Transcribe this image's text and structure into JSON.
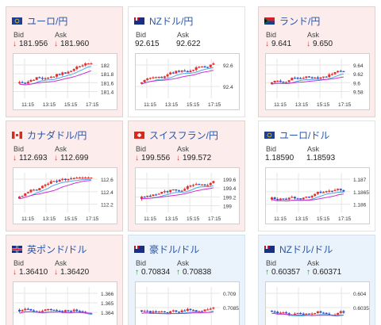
{
  "panels": [
    {
      "title": "ユーロ/円",
      "flag": "eu-jp",
      "bg": "pink",
      "bid_label": "Bid",
      "ask_label": "Ask",
      "bid": "181.956",
      "ask": "181.960",
      "dir": "down",
      "yticks": [
        "182",
        "181.8",
        "181.6",
        "181.4"
      ],
      "xticks": [
        "11:15",
        "13:15",
        "15:15",
        "17:15"
      ]
    },
    {
      "title": "NZドル/円",
      "flag": "nz-jp",
      "bg": "white",
      "bid_label": "Bid",
      "ask_label": "Ask",
      "bid": "92.615",
      "ask": "92.622",
      "dir": "none",
      "yticks": [
        "92.6",
        "92.4"
      ],
      "xticks": [
        "11:15",
        "13:15",
        "15:15",
        "17:15"
      ]
    },
    {
      "title": "ランド/円",
      "flag": "za-jp",
      "bg": "pink",
      "bid_label": "Bid",
      "ask_label": "Ask",
      "bid": "9.641",
      "ask": "9.650",
      "dir": "down",
      "yticks": [
        "9.64",
        "9.62",
        "9.6",
        "9.58"
      ],
      "xticks": [
        "11:15",
        "13:15",
        "15:15",
        "17:15"
      ]
    },
    {
      "title": "カナダドル/円",
      "flag": "ca-jp",
      "bg": "pink",
      "bid_label": "Bid",
      "ask_label": "Ask",
      "bid": "112.693",
      "ask": "112.699",
      "dir": "down",
      "yticks": [
        "112.6",
        "112.4",
        "112.2"
      ],
      "xticks": [
        "11:15",
        "13:15",
        "15:15",
        "17:15"
      ]
    },
    {
      "title": "スイスフラン/円",
      "flag": "ch-jp",
      "bg": "pink",
      "bid_label": "Bid",
      "ask_label": "Ask",
      "bid": "199.556",
      "ask": "199.572",
      "dir": "down",
      "yticks": [
        "199.6",
        "199.4",
        "199.2",
        "199"
      ],
      "xticks": [
        "11:15",
        "13:15",
        "15:15",
        "17:15"
      ]
    },
    {
      "title": "ユーロ/ドル",
      "flag": "eu-us",
      "bg": "white",
      "bid_label": "Bid",
      "ask_label": "Ask",
      "bid": "1.18590",
      "ask": "1.18593",
      "dir": "none",
      "yticks": [
        "1.187",
        "1.1865",
        "1.186"
      ],
      "xticks": [
        "11:15",
        "13:15",
        "15:15",
        "17:15"
      ]
    },
    {
      "title": "英ポンド/ドル",
      "flag": "gb-us",
      "bg": "pink",
      "bid_label": "Bid",
      "ask_label": "Ask",
      "bid": "1.36410",
      "ask": "1.36420",
      "dir": "down",
      "yticks": [
        "1.366",
        "1.365",
        "1.364"
      ],
      "xticks": []
    },
    {
      "title": "豪ドル/ドル",
      "flag": "au-us",
      "bg": "blue",
      "bid_label": "Bid",
      "ask_label": "Ask",
      "bid": "0.70834",
      "ask": "0.70838",
      "dir": "up",
      "yticks": [
        "0.709",
        "0.7085"
      ],
      "xticks": []
    },
    {
      "title": "NZドル/ドル",
      "flag": "nz-us",
      "bg": "blue",
      "bid_label": "Bid",
      "ask_label": "Ask",
      "bid": "0.60357",
      "ask": "0.60371",
      "dir": "up",
      "yticks": [
        "0.604",
        "0.6035"
      ],
      "xticks": []
    }
  ],
  "colors": {
    "title": "#2a55a8",
    "down": "#e03030",
    "up": "#2b8a3e",
    "candle_up": "#e03030",
    "candle_down": "#3050c0",
    "ma_short": "#4aa8e8",
    "ma_long": "#d030d0"
  }
}
